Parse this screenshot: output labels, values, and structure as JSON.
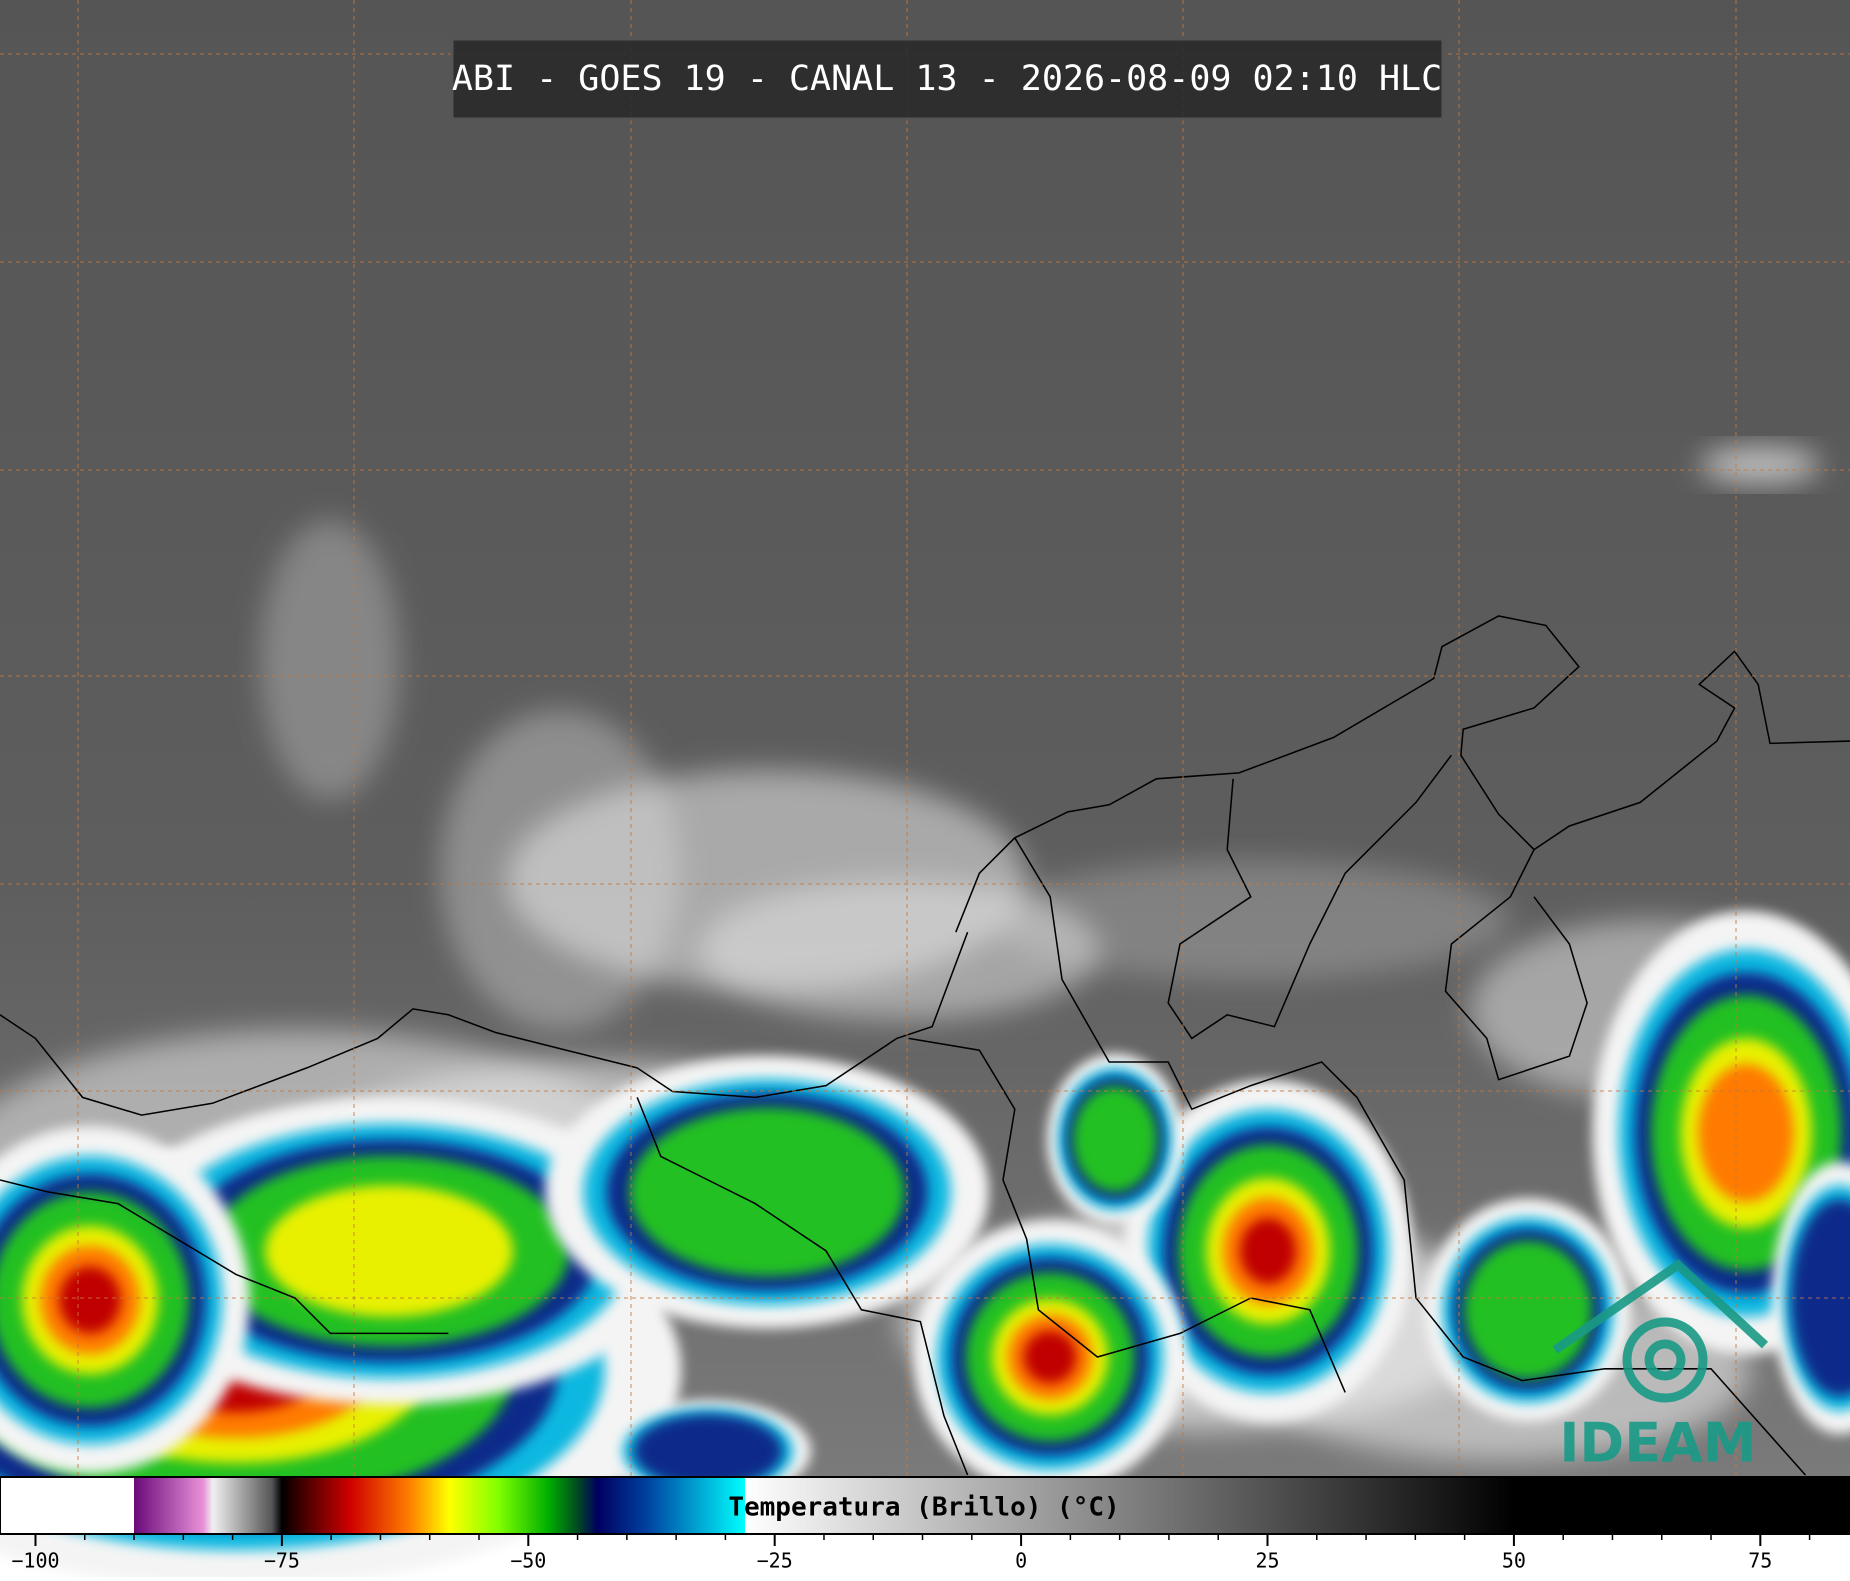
{
  "header": {
    "title": "ABI - GOES 19 - CANAL 13 - 2026-08-09 02:10 HLC"
  },
  "logo": {
    "text": "IDEAM"
  },
  "colorbar": {
    "label": "Temperatura (Brillo) (°C)",
    "xlim": [
      -103.6,
      84.1
    ],
    "xticks": [
      {
        "value": -100,
        "label": "−100"
      },
      {
        "value": -75,
        "label": "−75"
      },
      {
        "value": -50,
        "label": "−50"
      },
      {
        "value": -25,
        "label": "−25"
      },
      0,
      25,
      50,
      75
    ],
    "minor_ticks": [
      -100,
      -95,
      -90,
      -85,
      -80,
      -75,
      -70,
      -65,
      -60,
      -55,
      -50,
      -45,
      -40,
      -35,
      -30,
      -25,
      -20,
      -15,
      -10,
      -5,
      0,
      5,
      10,
      15,
      20,
      25,
      30,
      35,
      40,
      45,
      50,
      55,
      60,
      65,
      70,
      75,
      80
    ],
    "stops": [
      {
        "value": -103.6,
        "color": "#ffffff"
      },
      {
        "value": -90,
        "color": "#ffffff"
      },
      {
        "value": -90,
        "color": "#6a0a7a"
      },
      {
        "value": -83,
        "color": "#e890d8"
      },
      {
        "value": -82,
        "color": "#f0f0f0"
      },
      {
        "value": -76,
        "color": "#555555"
      },
      {
        "value": -75,
        "color": "#000000"
      },
      {
        "value": -73,
        "color": "#400000"
      },
      {
        "value": -68,
        "color": "#d00000"
      },
      {
        "value": -62,
        "color": "#ff8000"
      },
      {
        "value": -58,
        "color": "#ffff00"
      },
      {
        "value": -53,
        "color": "#80ff00"
      },
      {
        "value": -48,
        "color": "#00b000"
      },
      {
        "value": -45,
        "color": "#004a20"
      },
      {
        "value": -43,
        "color": "#000060"
      },
      {
        "value": -38,
        "color": "#0040a0"
      },
      {
        "value": -33,
        "color": "#00a0d0"
      },
      {
        "value": -28,
        "color": "#00ffff"
      },
      {
        "value": -28,
        "color": "#ffffff"
      },
      {
        "value": 50,
        "color": "#000000"
      },
      {
        "value": 84.1,
        "color": "#000000"
      }
    ]
  }
}
